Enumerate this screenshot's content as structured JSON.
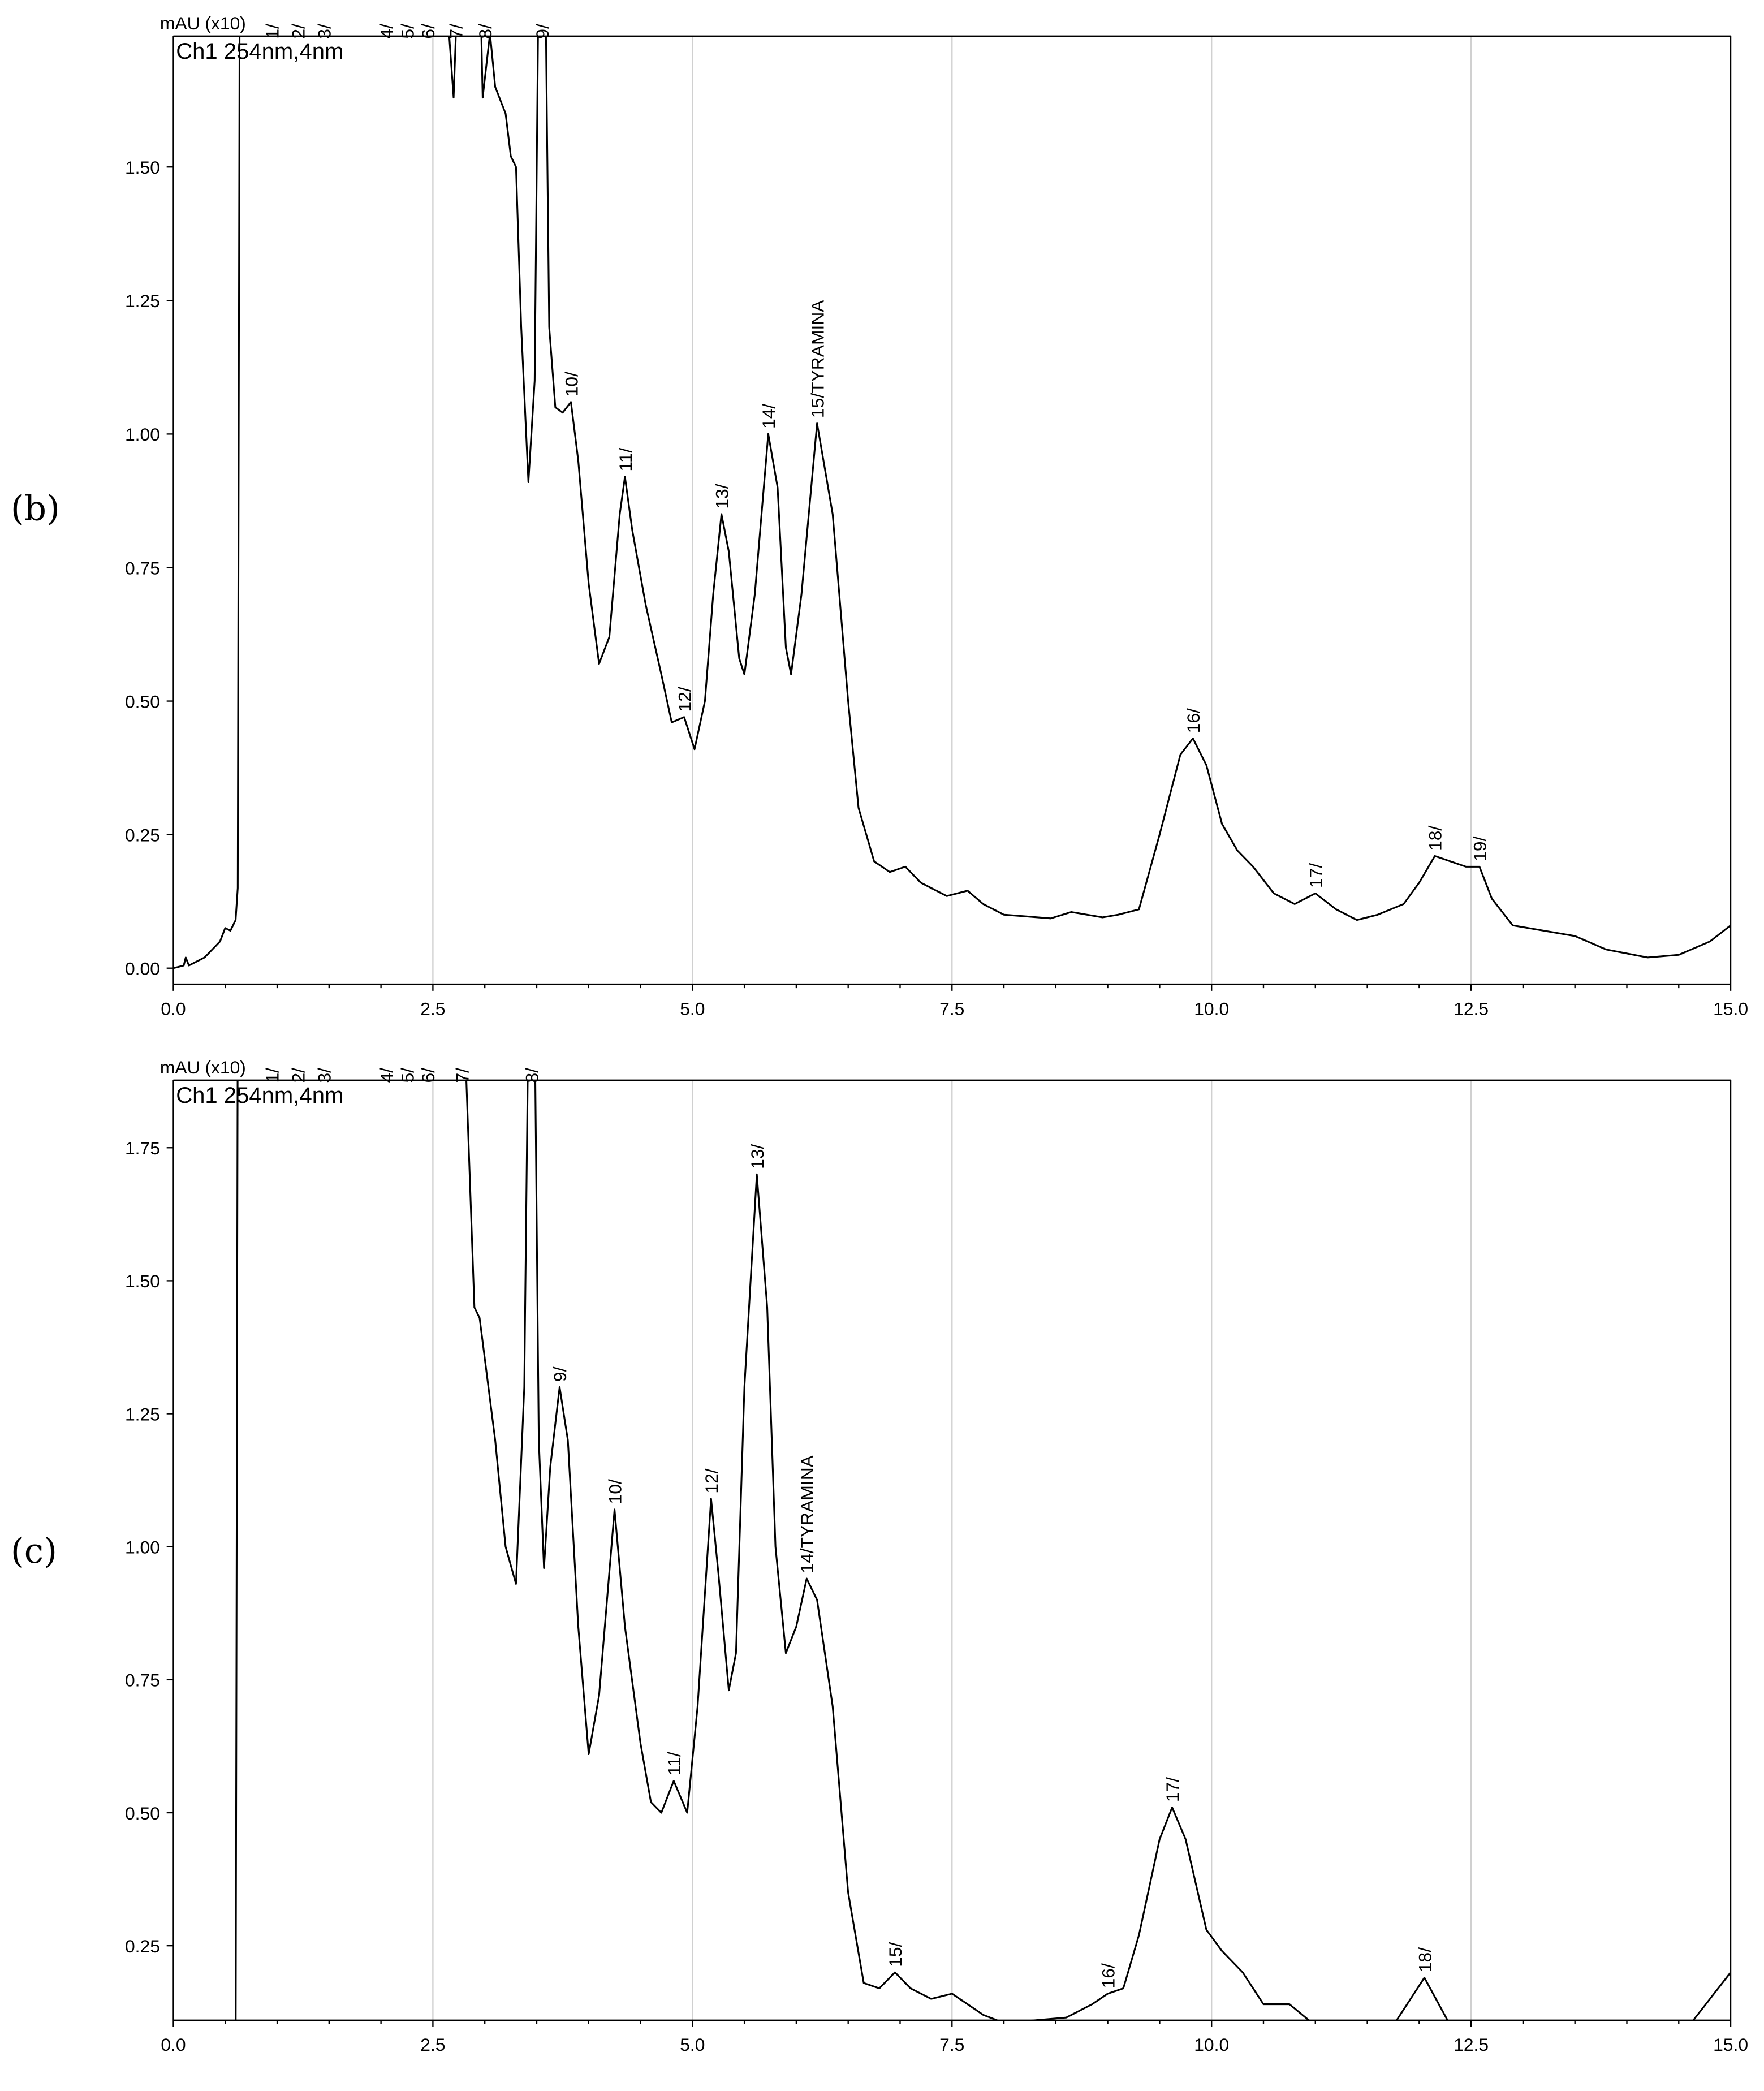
{
  "chart_data": [
    {
      "type": "line",
      "panel_label": "(b)",
      "ylabel": "mAU (x10)",
      "channel": "Ch1 254nm,4nm",
      "xlim": [
        0,
        15
      ],
      "ylim": [
        -0.03,
        1.745
      ],
      "xticks": [
        "0.0",
        "2.5",
        "5.0",
        "7.5",
        "10.0",
        "12.5",
        "15.0"
      ],
      "xtick_values": [
        0,
        2.5,
        5,
        7.5,
        10,
        12.5,
        15
      ],
      "yticks": [
        "0.00",
        "0.25",
        "0.50",
        "0.75",
        "1.00",
        "1.25",
        "1.50"
      ],
      "ytick_values": [
        0,
        0.25,
        0.5,
        0.75,
        1,
        1.25,
        1.5
      ],
      "grid": "vertical",
      "series": [
        {
          "name": "Ch1 254nm,4nm",
          "x": [
            0,
            0.1,
            0.12,
            0.15,
            0.3,
            0.45,
            0.5,
            0.55,
            0.6,
            0.62,
            0.64,
            2.6,
            2.7,
            2.75,
            2.95,
            2.98,
            3.05,
            3.1,
            3.2,
            3.25,
            3.3,
            3.35,
            3.42,
            3.48,
            3.52,
            3.58,
            3.62,
            3.68,
            3.75,
            3.83,
            3.9,
            4.0,
            4.1,
            4.2,
            4.3,
            4.35,
            4.42,
            4.55,
            4.7,
            4.8,
            4.92,
            5.02,
            5.12,
            5.2,
            5.28,
            5.35,
            5.45,
            5.5,
            5.6,
            5.73,
            5.82,
            5.9,
            5.95,
            6.05,
            6.2,
            6.35,
            6.5,
            6.6,
            6.75,
            6.9,
            7.05,
            7.2,
            7.45,
            7.65,
            7.8,
            8.0,
            8.2,
            8.45,
            8.65,
            8.8,
            8.95,
            9.1,
            9.3,
            9.5,
            9.7,
            9.82,
            9.95,
            10.1,
            10.25,
            10.4,
            10.6,
            10.8,
            11.0,
            11.2,
            11.4,
            11.6,
            11.85,
            12.0,
            12.15,
            12.3,
            12.45,
            12.58,
            12.7,
            12.9,
            13.2,
            13.5,
            13.8,
            14.2,
            14.5,
            14.8,
            15.0
          ],
          "y": [
            0,
            0.005,
            0.02,
            0.005,
            0.02,
            0.05,
            0.075,
            0.07,
            0.09,
            0.15,
            1.9,
            1.9,
            1.63,
            1.9,
            1.9,
            1.63,
            1.75,
            1.65,
            1.6,
            1.52,
            1.5,
            1.2,
            0.91,
            1.1,
            1.9,
            1.9,
            1.2,
            1.05,
            1.04,
            1.06,
            0.95,
            0.72,
            0.57,
            0.62,
            0.85,
            0.92,
            0.82,
            0.68,
            0.55,
            0.46,
            0.47,
            0.41,
            0.5,
            0.7,
            0.85,
            0.78,
            0.58,
            0.55,
            0.7,
            1.0,
            0.9,
            0.6,
            0.55,
            0.7,
            1.02,
            0.85,
            0.5,
            0.3,
            0.2,
            0.18,
            0.19,
            0.16,
            0.135,
            0.145,
            0.12,
            0.1,
            0.097,
            0.093,
            0.105,
            0.1,
            0.095,
            0.1,
            0.11,
            0.25,
            0.4,
            0.43,
            0.38,
            0.27,
            0.22,
            0.19,
            0.14,
            0.12,
            0.14,
            0.11,
            0.09,
            0.1,
            0.12,
            0.16,
            0.21,
            0.2,
            0.19,
            0.19,
            0.13,
            0.08,
            0.07,
            0.06,
            0.035,
            0.02,
            0.025,
            0.05,
            0.08
          ]
        }
      ],
      "peak_labels": [
        {
          "text": "1/",
          "x": 0.95,
          "y": 1.745
        },
        {
          "text": "2/",
          "x": 1.2,
          "y": 1.745
        },
        {
          "text": "3/",
          "x": 1.45,
          "y": 1.745
        },
        {
          "text": "4/",
          "x": 2.05,
          "y": 1.745
        },
        {
          "text": "5/",
          "x": 2.25,
          "y": 1.745
        },
        {
          "text": "6/",
          "x": 2.45,
          "y": 1.745
        },
        {
          "text": "7/",
          "x": 2.72,
          "y": 1.745
        },
        {
          "text": "8/",
          "x": 3.0,
          "y": 1.745
        },
        {
          "text": "9/",
          "x": 3.55,
          "y": 1.745
        },
        {
          "text": "10/",
          "x": 3.83,
          "y": 1.06
        },
        {
          "text": "11/",
          "x": 4.35,
          "y": 0.92
        },
        {
          "text": "12/",
          "x": 4.92,
          "y": 0.47
        },
        {
          "text": "13/",
          "x": 5.28,
          "y": 0.85
        },
        {
          "text": "14/",
          "x": 5.73,
          "y": 1.0
        },
        {
          "text": "15/TYRAMINA",
          "x": 6.2,
          "y": 1.02
        },
        {
          "text": "16/",
          "x": 9.82,
          "y": 0.43
        },
        {
          "text": "17/",
          "x": 11.0,
          "y": 0.14
        },
        {
          "text": "18/",
          "x": 12.15,
          "y": 0.21
        },
        {
          "text": "19/",
          "x": 12.58,
          "y": 0.19
        }
      ]
    },
    {
      "type": "line",
      "panel_label": "(c)",
      "ylabel": "mAU (x10)",
      "channel": "Ch1 254nm,4nm",
      "xlim": [
        0,
        15
      ],
      "ylim": [
        0.11,
        1.877
      ],
      "xticks": [
        "0.0",
        "2.5",
        "5.0",
        "7.5",
        "10.0",
        "12.5",
        "15.0"
      ],
      "xtick_values": [
        0,
        2.5,
        5,
        7.5,
        10,
        12.5,
        15
      ],
      "yticks": [
        "0.25",
        "0.50",
        "0.75",
        "1.00",
        "1.25",
        "1.50",
        "1.75"
      ],
      "ytick_values": [
        0.25,
        0.5,
        0.75,
        1,
        1.25,
        1.5,
        1.75
      ],
      "grid": "vertical",
      "series": [
        {
          "name": "Ch1 254nm,4nm",
          "x": [
            0.6,
            0.62,
            2.8,
            2.9,
            2.95,
            3.1,
            3.2,
            3.3,
            3.38,
            3.42,
            3.48,
            3.52,
            3.57,
            3.63,
            3.72,
            3.8,
            3.9,
            4.0,
            4.1,
            4.25,
            4.35,
            4.5,
            4.6,
            4.7,
            4.82,
            4.95,
            5.05,
            5.18,
            5.25,
            5.35,
            5.42,
            5.5,
            5.62,
            5.72,
            5.8,
            5.9,
            6.0,
            6.1,
            6.2,
            6.35,
            6.5,
            6.65,
            6.8,
            6.95,
            7.1,
            7.3,
            7.5,
            7.65,
            7.8,
            8.0,
            8.3,
            8.6,
            8.85,
            9.0,
            9.15,
            9.3,
            9.5,
            9.62,
            9.75,
            9.95,
            10.1,
            10.3,
            10.5,
            10.75,
            11.0,
            null,
            11.75,
            12.05,
            12.3,
            null,
            14.6,
            15.0
          ],
          "y": [
            0.0,
            2.0,
            2.0,
            1.45,
            1.43,
            1.2,
            1.0,
            0.93,
            1.3,
            2.0,
            2.0,
            1.2,
            0.96,
            1.15,
            1.3,
            1.2,
            0.85,
            0.61,
            0.72,
            1.07,
            0.85,
            0.63,
            0.52,
            0.5,
            0.56,
            0.5,
            0.7,
            1.09,
            0.95,
            0.73,
            0.8,
            1.3,
            1.7,
            1.45,
            1.0,
            0.8,
            0.85,
            0.94,
            0.9,
            0.7,
            0.35,
            0.18,
            0.17,
            0.2,
            0.17,
            0.15,
            0.16,
            0.14,
            0.12,
            0.105,
            0.11,
            0.115,
            0.14,
            0.16,
            0.17,
            0.27,
            0.45,
            0.51,
            0.45,
            0.28,
            0.24,
            0.2,
            0.14,
            0.14,
            0.1,
            null,
            0.1,
            0.19,
            0.1,
            null,
            0.1,
            0.2
          ]
        }
      ],
      "peak_labels": [
        {
          "text": "1/",
          "x": 0.95,
          "y": 1.877
        },
        {
          "text": "2/",
          "x": 1.2,
          "y": 1.877
        },
        {
          "text": "3/",
          "x": 1.45,
          "y": 1.877
        },
        {
          "text": "4/",
          "x": 2.05,
          "y": 1.877
        },
        {
          "text": "5/",
          "x": 2.25,
          "y": 1.877
        },
        {
          "text": "6/",
          "x": 2.45,
          "y": 1.877
        },
        {
          "text": "7/",
          "x": 2.78,
          "y": 1.877
        },
        {
          "text": "8/",
          "x": 3.45,
          "y": 1.877
        },
        {
          "text": "9/",
          "x": 3.72,
          "y": 1.3
        },
        {
          "text": "10/",
          "x": 4.25,
          "y": 1.07
        },
        {
          "text": "11/",
          "x": 4.82,
          "y": 0.56
        },
        {
          "text": "12/",
          "x": 5.18,
          "y": 1.09
        },
        {
          "text": "13/",
          "x": 5.62,
          "y": 1.7
        },
        {
          "text": "14/TYRAMINA",
          "x": 6.1,
          "y": 0.94
        },
        {
          "text": "15/",
          "x": 6.95,
          "y": 0.2
        },
        {
          "text": "16/",
          "x": 9.0,
          "y": 0.16
        },
        {
          "text": "17/",
          "x": 9.62,
          "y": 0.51
        },
        {
          "text": "18/",
          "x": 12.05,
          "y": 0.19
        }
      ]
    }
  ]
}
